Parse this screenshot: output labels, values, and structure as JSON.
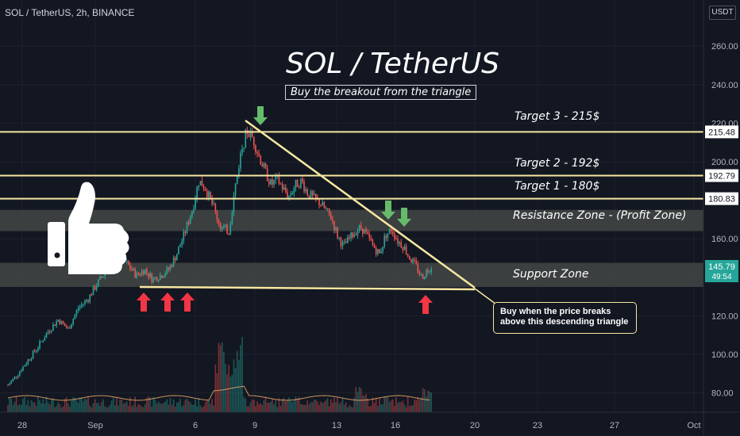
{
  "header": {
    "symbol_line": "SOL / TetherUS, 2h, BINANCE",
    "currency": "USDT"
  },
  "annotations": {
    "title": "SOL / TetherUS",
    "subtitle": "Buy the breakout from the triangle",
    "target3": "Target 3 - 215$",
    "target2": "Target 2 - 192$",
    "target1": "Target 1 - 180$",
    "resistance": "Resistance Zone - (Profit Zone)",
    "support": "Support Zone",
    "callout_line1": "Buy when the price breaks",
    "callout_line2": "above this descending triangle"
  },
  "colors": {
    "background": "#131722",
    "up": "#26a69a",
    "down": "#ef5350",
    "target_line": "#f7e7a1",
    "zone": "#4a4d4a",
    "arrow_up": "#f23645",
    "arrow_down": "#66bb6a",
    "last_price": "#26a69a"
  },
  "icons": [
    "thumbs-up-icon",
    "arrow-up-icon",
    "arrow-down-icon"
  ],
  "chart_data": {
    "type": "candlestick",
    "title": "SOL / TetherUS",
    "x_ticks": [
      "28",
      "Sep",
      "6",
      "9",
      "13",
      "16",
      "20",
      "23",
      "27",
      "Oct"
    ],
    "y_ticks": [
      80,
      100,
      120,
      140,
      160,
      180,
      200,
      220,
      240,
      260
    ],
    "ylim": [
      73,
      290
    ],
    "price_labels": [
      "215.48",
      "192.79",
      "180.83"
    ],
    "last_price": "145.79",
    "countdown": "49:54",
    "levels": [
      215.48,
      192.79,
      180.83
    ],
    "resistance_zone": [
      164,
      175
    ],
    "support_zone": [
      135,
      147.5
    ],
    "candles_day": [
      {
        "d": 0,
        "p": 84
      },
      {
        "d": 0.5,
        "p": 90
      },
      {
        "d": 1,
        "p": 97
      },
      {
        "d": 1.5,
        "p": 104
      },
      {
        "d": 2,
        "p": 112
      },
      {
        "d": 2.5,
        "p": 118
      },
      {
        "d": 3,
        "p": 113
      },
      {
        "d": 3.5,
        "p": 124
      },
      {
        "d": 4,
        "p": 129
      },
      {
        "d": 4.4,
        "p": 136
      },
      {
        "d": 4.8,
        "p": 142
      },
      {
        "d": 5.2,
        "p": 147
      },
      {
        "d": 5.6,
        "p": 150
      },
      {
        "d": 6,
        "p": 146
      },
      {
        "d": 6.4,
        "p": 141
      },
      {
        "d": 6.8,
        "p": 144
      },
      {
        "d": 7.2,
        "p": 139
      },
      {
        "d": 7.6,
        "p": 141
      },
      {
        "d": 8,
        "p": 144
      },
      {
        "d": 8.4,
        "p": 152
      },
      {
        "d": 8.8,
        "p": 163
      },
      {
        "d": 9.2,
        "p": 176
      },
      {
        "d": 9.5,
        "p": 190
      },
      {
        "d": 9.8,
        "p": 187
      },
      {
        "d": 10.2,
        "p": 177
      },
      {
        "d": 10.6,
        "p": 166
      },
      {
        "d": 11,
        "p": 164
      },
      {
        "d": 11.3,
        "p": 186
      },
      {
        "d": 11.6,
        "p": 205
      },
      {
        "d": 11.9,
        "p": 216
      },
      {
        "d": 12.2,
        "p": 212
      },
      {
        "d": 12.5,
        "p": 203
      },
      {
        "d": 12.8,
        "p": 195
      },
      {
        "d": 13.1,
        "p": 188
      },
      {
        "d": 13.4,
        "p": 191
      },
      {
        "d": 13.7,
        "p": 186
      },
      {
        "d": 14,
        "p": 182
      },
      {
        "d": 14.3,
        "p": 188
      },
      {
        "d": 14.6,
        "p": 190
      },
      {
        "d": 14.9,
        "p": 184
      },
      {
        "d": 15.2,
        "p": 181
      },
      {
        "d": 15.5,
        "p": 179
      },
      {
        "d": 15.8,
        "p": 175
      },
      {
        "d": 16.1,
        "p": 171
      },
      {
        "d": 16.4,
        "p": 162
      },
      {
        "d": 16.7,
        "p": 156
      },
      {
        "d": 17,
        "p": 160
      },
      {
        "d": 17.3,
        "p": 164
      },
      {
        "d": 17.6,
        "p": 166
      },
      {
        "d": 17.9,
        "p": 161
      },
      {
        "d": 18.2,
        "p": 156
      },
      {
        "d": 18.5,
        "p": 152
      },
      {
        "d": 18.8,
        "p": 162
      },
      {
        "d": 19.1,
        "p": 165
      },
      {
        "d": 19.4,
        "p": 159
      },
      {
        "d": 19.7,
        "p": 156
      },
      {
        "d": 20,
        "p": 150
      },
      {
        "d": 20.3,
        "p": 146
      },
      {
        "d": 20.6,
        "p": 140
      },
      {
        "d": 20.9,
        "p": 144
      },
      {
        "d": 21.1,
        "p": 146
      }
    ]
  }
}
